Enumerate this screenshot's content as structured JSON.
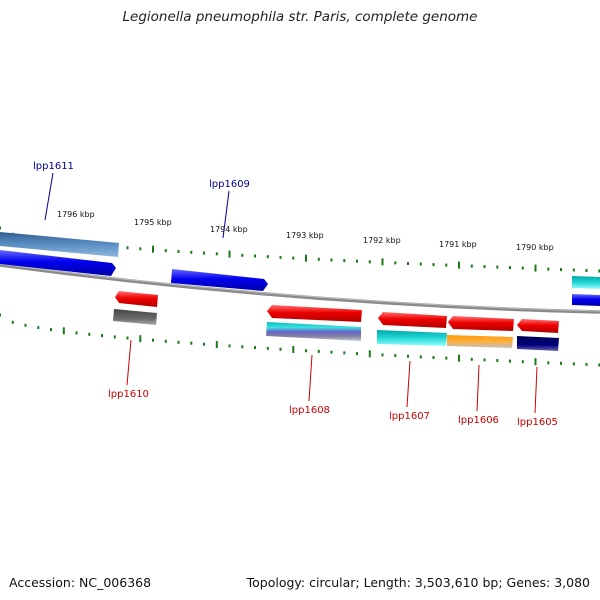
{
  "title": "Legionella pneumophila str. Paris, complete genome",
  "accession": "Accession: NC_006368",
  "summary": "Topology: circular; Length: 3,503,610 bp; Genes: 3,080",
  "colors": {
    "backbone": "#888888",
    "tick": "#1a7a1a",
    "forward_label": "#000099",
    "reverse_label": "#cc0000",
    "cds_forward": "#0000ee",
    "cds_reverse": "#ee0000"
  },
  "position_labels": [
    "1796 kbp",
    "1795 kbp",
    "1794 kbp",
    "1793 kbp",
    "1792 kbp",
    "1791 kbp",
    "1790 kbp"
  ],
  "gene_labels": {
    "lpp1611": "lpp1611",
    "lpp1609": "lpp1609",
    "lpp1610": "lpp1610",
    "lpp1608": "lpp1608",
    "lpp1607": "lpp1607",
    "lpp1606": "lpp1606",
    "lpp1605": "lpp1605"
  }
}
